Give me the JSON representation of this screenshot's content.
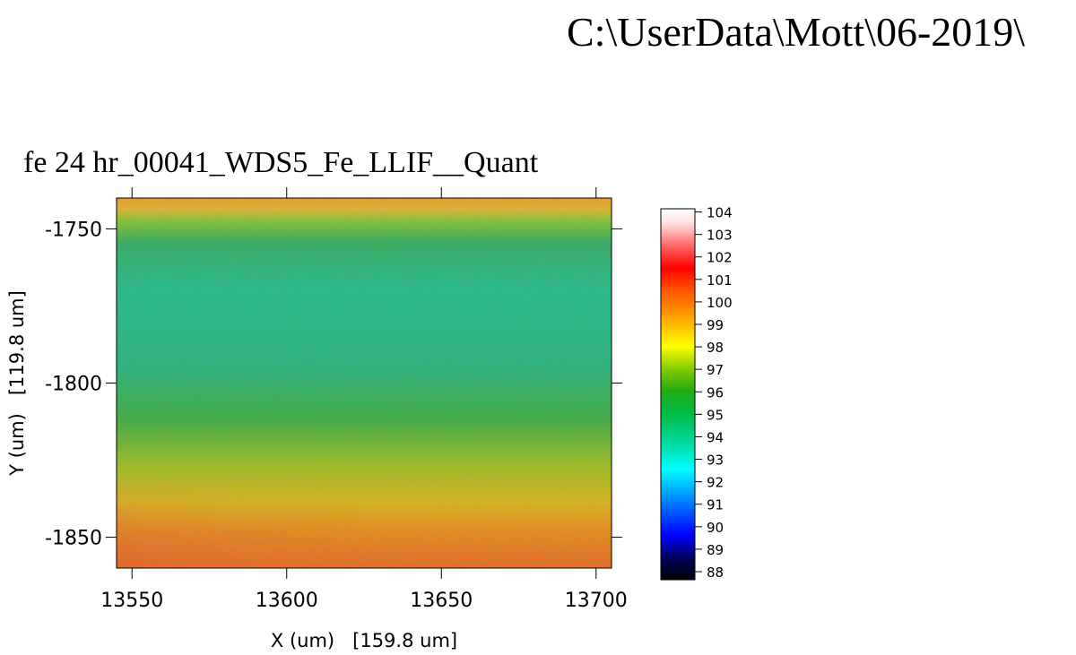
{
  "header": {
    "path": "C:\\UserData\\Mott\\06-2019\\"
  },
  "chart_data": {
    "type": "heatmap",
    "title": "fe 24 hr_00041_WDS5_Fe_LLIF__Quant",
    "xlabel": "X (um)   [159.8 um]",
    "ylabel": "Y (um)   [119.8 um]",
    "xlim": [
      13545,
      13705
    ],
    "ylim": [
      -1860,
      -1740
    ],
    "xticks": [
      13550,
      13600,
      13650,
      13700
    ],
    "yticks": [
      -1750,
      -1800,
      -1850
    ],
    "xtick_labels": [
      "13550",
      "13600",
      "13650",
      "13700"
    ],
    "ytick_labels": [
      "-1750",
      "-1800",
      "-1850"
    ],
    "colorbar": {
      "min": 88,
      "max": 104.5,
      "ticks": [
        104,
        103,
        102,
        101,
        100,
        99,
        98,
        97,
        96,
        95,
        94,
        93,
        92,
        91,
        90,
        89,
        88
      ],
      "tick_labels": [
        "104",
        "103",
        "102",
        "101",
        "100",
        "99",
        "98",
        "97",
        "96",
        "95",
        "94",
        "93",
        "92",
        "91",
        "90",
        "89",
        "88"
      ]
    },
    "grid": false
  }
}
